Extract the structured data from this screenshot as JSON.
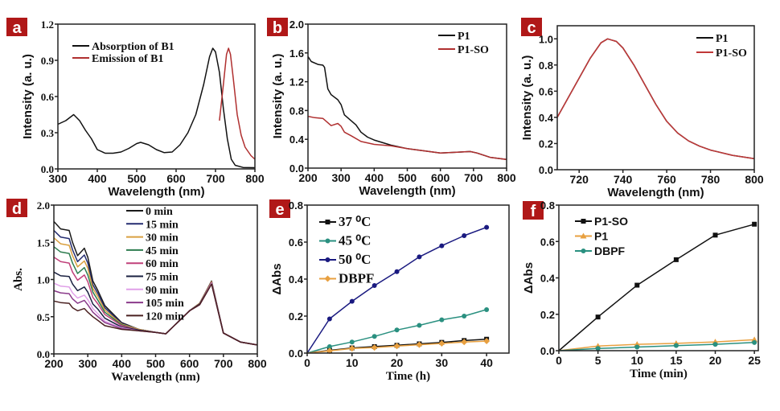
{
  "panel_label_color": "#b01818",
  "chart_data": [
    {
      "panel": "a",
      "type": "line",
      "xlabel": "Wavelength (nm)",
      "ylabel": "Intensity (a. u.)",
      "xlim": [
        300,
        800
      ],
      "ylim": [
        0,
        1.2
      ],
      "xticks": [
        "300",
        "400",
        "500",
        "600",
        "700",
        "800"
      ],
      "yticks": [
        "0.0",
        "0.3",
        "0.6",
        "0.9",
        "1.2"
      ],
      "series": [
        {
          "name": "Absorption of B1",
          "color": "#111111",
          "marker": "none",
          "x": [
            300,
            320,
            340,
            355,
            370,
            385,
            400,
            420,
            440,
            460,
            480,
            500,
            510,
            530,
            550,
            570,
            590,
            610,
            630,
            650,
            670,
            685,
            693,
            700,
            710,
            720,
            730,
            740,
            750,
            770,
            800
          ],
          "y": [
            0.37,
            0.4,
            0.45,
            0.4,
            0.32,
            0.25,
            0.16,
            0.13,
            0.13,
            0.14,
            0.17,
            0.21,
            0.22,
            0.2,
            0.16,
            0.135,
            0.14,
            0.2,
            0.3,
            0.45,
            0.7,
            0.93,
            1.0,
            0.97,
            0.8,
            0.5,
            0.25,
            0.08,
            0.03,
            0.012,
            0.01
          ]
        },
        {
          "name": "Emission of B1",
          "color": "#b03030",
          "marker": "none",
          "x": [
            710,
            720,
            728,
            733,
            738,
            745,
            755,
            765,
            775,
            790,
            800
          ],
          "y": [
            0.4,
            0.7,
            0.95,
            1.0,
            0.95,
            0.75,
            0.45,
            0.28,
            0.18,
            0.11,
            0.08
          ]
        }
      ]
    },
    {
      "panel": "b",
      "type": "line",
      "xlabel": "Wavelength (nm)",
      "ylabel": "Intensity (a. u.)",
      "xlim": [
        200,
        800
      ],
      "ylim": [
        0,
        2.0
      ],
      "xticks": [
        "200",
        "300",
        "400",
        "500",
        "600",
        "700",
        "800"
      ],
      "yticks": [
        "0.0",
        "0.4",
        "0.8",
        "1.2",
        "1.6",
        "2.0"
      ],
      "series": [
        {
          "name": "P1",
          "color": "#111111",
          "marker": "none",
          "x": [
            200,
            210,
            230,
            245,
            250,
            260,
            270,
            290,
            300,
            310,
            330,
            345,
            360,
            380,
            400,
            450,
            500,
            550,
            600,
            650,
            690,
            710,
            750,
            800
          ],
          "y": [
            1.55,
            1.48,
            1.44,
            1.43,
            1.4,
            1.1,
            1.02,
            0.95,
            0.88,
            0.74,
            0.66,
            0.6,
            0.5,
            0.43,
            0.39,
            0.32,
            0.27,
            0.24,
            0.21,
            0.22,
            0.23,
            0.21,
            0.15,
            0.12
          ]
        },
        {
          "name": "P1-SO",
          "color": "#b03030",
          "marker": "none",
          "x": [
            200,
            220,
            245,
            260,
            270,
            290,
            300,
            310,
            330,
            360,
            400,
            450,
            500,
            550,
            600,
            650,
            690,
            710,
            750,
            800
          ],
          "y": [
            0.72,
            0.7,
            0.69,
            0.63,
            0.59,
            0.62,
            0.58,
            0.5,
            0.45,
            0.37,
            0.33,
            0.31,
            0.27,
            0.24,
            0.21,
            0.22,
            0.23,
            0.21,
            0.15,
            0.12
          ]
        }
      ]
    },
    {
      "panel": "c",
      "type": "line",
      "xlabel": "Wavelength (nm)",
      "ylabel": "Intensity (a. u.)",
      "xlim": [
        710,
        800
      ],
      "ylim": [
        0,
        1.1
      ],
      "xticks": [
        "720",
        "740",
        "760",
        "780",
        "800"
      ],
      "yticks": [
        "0.0",
        "0.2",
        "0.4",
        "0.6",
        "0.8",
        "1.0"
      ],
      "series": [
        {
          "name": "P1",
          "color": "#111111",
          "marker": "none",
          "x": [
            710,
            715,
            720,
            725,
            730,
            733,
            737,
            740,
            745,
            750,
            755,
            760,
            765,
            770,
            775,
            780,
            790,
            800
          ],
          "y": [
            0.4,
            0.55,
            0.7,
            0.85,
            0.97,
            1.0,
            0.98,
            0.93,
            0.8,
            0.65,
            0.5,
            0.37,
            0.28,
            0.22,
            0.18,
            0.15,
            0.11,
            0.085
          ]
        },
        {
          "name": "P1-SO",
          "color": "#c03838",
          "marker": "none",
          "x": [
            710,
            715,
            720,
            725,
            730,
            733,
            737,
            740,
            745,
            750,
            755,
            760,
            765,
            770,
            775,
            780,
            790,
            800
          ],
          "y": [
            0.4,
            0.55,
            0.7,
            0.85,
            0.97,
            1.0,
            0.98,
            0.93,
            0.8,
            0.65,
            0.5,
            0.37,
            0.28,
            0.22,
            0.18,
            0.15,
            0.11,
            0.085
          ]
        }
      ]
    },
    {
      "panel": "d",
      "type": "line",
      "xlabel": "Wavelength (nm)",
      "ylabel": "Abs.",
      "xlim": [
        200,
        800
      ],
      "ylim": [
        0,
        2.0
      ],
      "xticks": [
        "200",
        "300",
        "400",
        "500",
        "600",
        "700",
        "800"
      ],
      "yticks": [
        "0.0",
        "0.5",
        "1.0",
        "1.5",
        "2.0"
      ],
      "x": [
        200,
        220,
        245,
        255,
        270,
        290,
        300,
        315,
        330,
        350,
        400,
        450,
        500,
        530,
        600,
        630,
        665,
        700,
        750,
        800
      ],
      "series": [
        {
          "name": "0 min",
          "color": "#1a1a1a",
          "marker": "none",
          "y": [
            1.78,
            1.68,
            1.66,
            1.5,
            1.32,
            1.42,
            1.3,
            0.98,
            0.85,
            0.65,
            0.42,
            0.33,
            0.29,
            0.27,
            0.58,
            0.68,
            0.98,
            0.28,
            0.16,
            0.12
          ]
        },
        {
          "name": "15 min",
          "color": "#232c70",
          "marker": "none",
          "y": [
            1.66,
            1.57,
            1.55,
            1.4,
            1.24,
            1.33,
            1.22,
            0.93,
            0.81,
            0.62,
            0.41,
            0.33,
            0.29,
            0.27,
            0.58,
            0.68,
            0.97,
            0.28,
            0.16,
            0.12
          ]
        },
        {
          "name": "30 min",
          "color": "#d9a040",
          "marker": "none",
          "y": [
            1.56,
            1.48,
            1.46,
            1.32,
            1.17,
            1.25,
            1.15,
            0.88,
            0.77,
            0.59,
            0.4,
            0.33,
            0.29,
            0.27,
            0.58,
            0.68,
            0.97,
            0.28,
            0.16,
            0.12
          ]
        },
        {
          "name": "45 min",
          "color": "#2e7d4f",
          "marker": "none",
          "y": [
            1.44,
            1.37,
            1.35,
            1.22,
            1.08,
            1.16,
            1.06,
            0.83,
            0.72,
            0.56,
            0.39,
            0.32,
            0.29,
            0.27,
            0.58,
            0.67,
            0.96,
            0.28,
            0.16,
            0.12
          ]
        },
        {
          "name": "60 min",
          "color": "#c0407a",
          "marker": "none",
          "y": [
            1.3,
            1.24,
            1.22,
            1.1,
            0.99,
            1.06,
            0.97,
            0.76,
            0.67,
            0.53,
            0.38,
            0.32,
            0.29,
            0.27,
            0.58,
            0.67,
            0.96,
            0.28,
            0.16,
            0.12
          ]
        },
        {
          "name": "75 min",
          "color": "#1a2040",
          "marker": "none",
          "y": [
            1.1,
            1.05,
            1.04,
            0.94,
            0.85,
            0.9,
            0.83,
            0.67,
            0.6,
            0.48,
            0.36,
            0.32,
            0.29,
            0.27,
            0.58,
            0.67,
            0.95,
            0.28,
            0.16,
            0.12
          ]
        },
        {
          "name": "90 min",
          "color": "#e0a0e8",
          "marker": "none",
          "y": [
            0.95,
            0.91,
            0.9,
            0.82,
            0.75,
            0.79,
            0.73,
            0.61,
            0.54,
            0.44,
            0.35,
            0.31,
            0.29,
            0.27,
            0.58,
            0.66,
            0.95,
            0.28,
            0.16,
            0.12
          ]
        },
        {
          "name": "105 min",
          "color": "#8a3a8a",
          "marker": "none",
          "y": [
            0.85,
            0.82,
            0.81,
            0.74,
            0.68,
            0.72,
            0.66,
            0.56,
            0.5,
            0.42,
            0.34,
            0.31,
            0.29,
            0.27,
            0.58,
            0.66,
            0.94,
            0.28,
            0.16,
            0.12
          ]
        },
        {
          "name": "120 min",
          "color": "#4a2020",
          "marker": "none",
          "y": [
            0.71,
            0.69,
            0.68,
            0.62,
            0.58,
            0.61,
            0.56,
            0.5,
            0.45,
            0.38,
            0.33,
            0.31,
            0.29,
            0.27,
            0.58,
            0.66,
            0.94,
            0.28,
            0.16,
            0.12
          ]
        }
      ]
    },
    {
      "panel": "e",
      "type": "line",
      "xlabel": "Time (h)",
      "ylabel": "ΔAbs",
      "xlim": [
        0,
        45
      ],
      "ylim": [
        0,
        0.8
      ],
      "xticks": [
        "0",
        "10",
        "20",
        "30",
        "40"
      ],
      "yticks": [
        "0.0",
        "0.2",
        "0.4",
        "0.6",
        "0.8"
      ],
      "x": [
        0,
        5,
        10,
        15,
        20,
        25,
        30,
        35,
        40
      ],
      "series": [
        {
          "name": "37 ⁰C",
          "color": "#111111",
          "marker": "square",
          "y": [
            0,
            0.015,
            0.028,
            0.035,
            0.042,
            0.05,
            0.058,
            0.068,
            0.075
          ]
        },
        {
          "name": "45 ⁰C",
          "color": "#2a9080",
          "marker": "circle",
          "y": [
            0,
            0.035,
            0.06,
            0.09,
            0.125,
            0.15,
            0.18,
            0.2,
            0.235
          ]
        },
        {
          "name": "50 ⁰C",
          "color": "#1a1a80",
          "marker": "circle",
          "y": [
            0,
            0.185,
            0.28,
            0.365,
            0.44,
            0.52,
            0.58,
            0.635,
            0.68
          ]
        },
        {
          "name": "DBPF",
          "color": "#e8a040",
          "marker": "diamond",
          "y": [
            0,
            0.012,
            0.025,
            0.03,
            0.038,
            0.045,
            0.052,
            0.06,
            0.065
          ]
        }
      ]
    },
    {
      "panel": "f",
      "type": "line",
      "xlabel": "Time (min)",
      "ylabel": "ΔAbs",
      "xlim": [
        0,
        25.5
      ],
      "ylim": [
        0,
        0.8
      ],
      "xticks": [
        "0",
        "5",
        "10",
        "15",
        "20",
        "25"
      ],
      "yticks": [
        "0.0",
        "0.2",
        "0.4",
        "0.6",
        "0.8"
      ],
      "x": [
        0,
        5,
        10,
        15,
        20,
        25
      ],
      "series": [
        {
          "name": "P1-SO",
          "color": "#111111",
          "marker": "square",
          "y": [
            0,
            0.185,
            0.36,
            0.5,
            0.635,
            0.695
          ]
        },
        {
          "name": "P1",
          "color": "#e8a040",
          "marker": "triangle",
          "y": [
            0,
            0.025,
            0.035,
            0.04,
            0.048,
            0.06
          ]
        },
        {
          "name": "DBPF",
          "color": "#2a9080",
          "marker": "circle",
          "y": [
            0,
            0.012,
            0.02,
            0.028,
            0.035,
            0.045
          ]
        }
      ]
    }
  ]
}
